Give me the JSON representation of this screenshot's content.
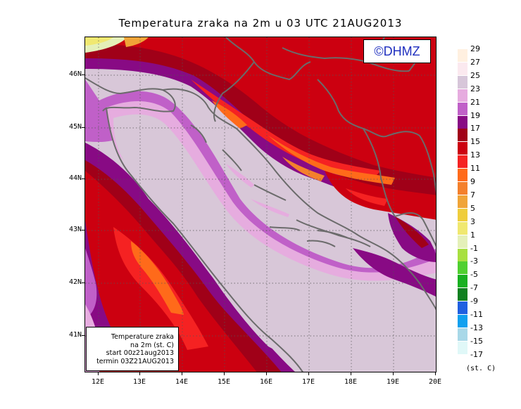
{
  "title": "Temperatura zraka na 2m u 03 UTC 21AUG2013",
  "brand": "©DHMZ",
  "info_box": {
    "line1": "Temperature zraka",
    "line2": "na 2m (st. C)",
    "line3": "start 00z21aug2013",
    "line4": "termin 03Z21AUG2013"
  },
  "lat_labels": [
    "46N",
    "45N",
    "44N",
    "43N",
    "42N",
    "41N"
  ],
  "lon_labels": [
    "12E",
    "13E",
    "14E",
    "15E",
    "16E",
    "17E",
    "18E",
    "19E",
    "20E"
  ],
  "legend": {
    "unit": "(st. C)",
    "bins": [
      {
        "label": "29",
        "color": "#fff0e0"
      },
      {
        "label": "27",
        "color": "#fbe9ef"
      },
      {
        "label": "25",
        "color": "#d7c6d9"
      },
      {
        "label": "23",
        "color": "#e6acdf"
      },
      {
        "label": "21",
        "color": "#c060c8"
      },
      {
        "label": "19",
        "color": "#880a84"
      },
      {
        "label": "17",
        "color": "#a00018"
      },
      {
        "label": "15",
        "color": "#cc0010"
      },
      {
        "label": "13",
        "color": "#f52222"
      },
      {
        "label": "11",
        "color": "#ff6a1a"
      },
      {
        "label": "9",
        "color": "#f4802c"
      },
      {
        "label": "7",
        "color": "#f0a438"
      },
      {
        "label": "5",
        "color": "#efcd3c"
      },
      {
        "label": "3",
        "color": "#f0e870"
      },
      {
        "label": "1",
        "color": "#e4f0b8"
      },
      {
        "label": "-1",
        "color": "#a8e040"
      },
      {
        "label": "-3",
        "color": "#50d030"
      },
      {
        "label": "-5",
        "color": "#18b020"
      },
      {
        "label": "-7",
        "color": "#108020"
      },
      {
        "label": "-9",
        "color": "#2060e0"
      },
      {
        "label": "-11",
        "color": "#10a0ef"
      },
      {
        "label": "-13",
        "color": "#a8d8e8"
      },
      {
        "label": "-15",
        "color": "#e0f8f8"
      },
      {
        "label": "-17",
        "color": "#ffffff"
      }
    ]
  }
}
